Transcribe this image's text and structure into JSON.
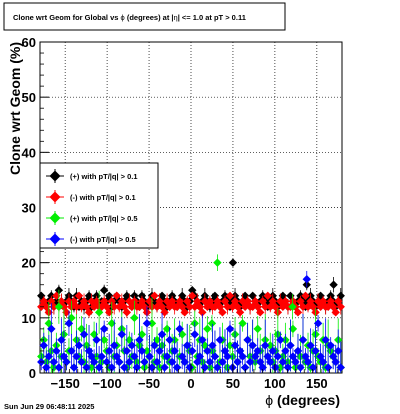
{
  "chart_data": {
    "type": "scatter",
    "title_parts": {
      "pre": "Clone wrt Geom for Global vs ",
      "phi": "ϕ",
      "mid": " (degrees) at |",
      "eta": "η",
      "post": "| <= 1.0 at pT > 0.11"
    },
    "xlabel": {
      "symbol": "ϕ",
      "text": " (degrees)"
    },
    "ylabel": "Clone wrt Geom (%)",
    "xlim": [
      -180,
      180
    ],
    "ylim": [
      0,
      60
    ],
    "x_ticks": [
      -150,
      -100,
      -50,
      0,
      50,
      100,
      150
    ],
    "x_tick_labels": [
      "−150",
      "−100",
      "−50",
      "0",
      "50",
      "100",
      "150"
    ],
    "y_ticks": [
      0,
      10,
      20,
      30,
      40,
      50,
      60
    ],
    "y_tick_labels": [
      "0",
      "10",
      "20",
      "30",
      "40",
      "50",
      "60"
    ],
    "grid": true,
    "legend_position": "left",
    "footer": "Sun Jun 29 06:48:11 2025",
    "series": [
      {
        "name": "(+) with pT/|q| > 0.1",
        "color": "#000000",
        "marker": "diamond",
        "y": [
          14,
          13,
          12,
          13,
          14,
          12,
          13,
          15,
          13,
          12,
          13,
          14,
          13,
          12,
          14,
          12,
          13,
          12,
          13,
          14,
          12,
          13,
          14,
          12,
          13,
          15,
          13,
          14,
          12,
          13,
          14,
          13,
          12,
          13,
          14,
          13,
          12,
          14,
          13,
          12,
          14,
          13,
          12,
          13,
          14,
          13,
          12,
          13,
          14,
          13,
          12,
          13,
          14,
          13,
          12,
          13,
          14,
          13,
          12,
          13,
          15,
          14,
          13,
          12,
          13,
          14,
          13,
          12,
          13,
          14,
          13,
          12,
          13,
          14,
          13,
          12,
          13,
          14,
          13,
          12,
          13,
          14,
          13,
          12,
          14,
          13,
          12,
          13,
          14,
          13,
          12,
          13,
          14,
          13,
          12,
          13,
          14,
          13,
          12,
          14,
          13,
          12,
          13,
          14,
          13,
          12,
          13,
          14,
          13,
          12,
          13,
          14,
          13,
          12,
          13,
          14,
          13,
          12,
          13,
          14
        ],
        "extra": [
          {
            "x": 50,
            "y": 20
          },
          {
            "x": 138,
            "y": 16
          },
          {
            "x": 170,
            "y": 16
          }
        ]
      },
      {
        "name": "(-) with pT/|q| > 0.1",
        "color": "#ff0000",
        "marker": "diamond",
        "y": [
          12,
          13,
          12,
          11,
          13,
          12,
          14,
          12,
          13,
          12,
          11,
          13,
          12,
          13,
          12,
          14,
          12,
          13,
          12,
          11,
          13,
          12,
          13,
          12,
          12,
          13,
          12,
          11,
          13,
          12,
          14,
          12,
          13,
          12,
          11,
          13,
          12,
          13,
          12,
          12,
          13,
          12,
          11,
          13,
          12,
          14,
          12,
          13,
          12,
          11,
          13,
          12,
          13,
          12,
          12,
          13,
          12,
          11,
          13,
          12,
          14,
          12,
          13,
          12,
          11,
          13,
          12,
          13,
          12,
          12,
          13,
          12,
          11,
          13,
          12,
          14,
          12,
          13,
          12,
          11,
          13,
          12,
          13,
          12,
          12,
          13,
          12,
          11,
          13,
          12,
          14,
          12,
          13,
          12,
          11,
          13,
          12,
          13,
          12,
          12,
          13,
          12,
          11,
          13,
          12,
          14,
          12,
          13,
          12,
          11,
          13,
          12,
          13,
          12,
          12,
          13,
          12,
          11,
          13,
          12
        ]
      },
      {
        "name": "(+) with pT/|q| > 0.5",
        "color": "#00ee00",
        "marker": "diamond",
        "y": [
          3,
          6,
          2,
          9,
          4,
          1,
          5,
          12,
          3,
          7,
          2,
          4,
          10,
          1,
          6,
          3,
          8,
          2,
          5,
          4,
          1,
          7,
          3,
          11,
          2,
          6,
          4,
          1,
          9,
          3,
          5,
          2,
          8,
          4,
          1,
          6,
          3,
          10,
          2,
          5,
          7,
          1,
          4,
          3,
          9,
          2,
          6,
          1,
          5,
          3,
          8,
          2,
          4,
          6,
          1,
          3,
          7,
          2,
          5,
          4,
          1,
          9,
          3,
          6,
          2,
          5,
          8,
          1,
          4,
          3,
          20,
          2,
          6,
          4,
          1,
          5,
          3,
          7,
          2,
          4,
          9,
          1,
          6,
          3,
          5,
          2,
          8,
          4,
          1,
          6,
          3,
          5,
          2,
          4,
          7,
          1,
          3,
          6,
          2,
          5,
          8,
          1,
          4,
          3,
          6,
          2,
          5,
          1,
          4,
          7,
          3,
          2,
          6,
          1,
          5,
          4,
          3,
          2,
          6,
          1
        ],
        "extra": [
          {
            "x": 25,
            "y": 9
          },
          {
            "x": 121,
            "y": 12
          }
        ]
      },
      {
        "name": "(-) with pT/|q| > 0.5",
        "color": "#0000ff",
        "marker": "diamond",
        "y": [
          2,
          5,
          1,
          3,
          8,
          2,
          4,
          1,
          6,
          3,
          2,
          9,
          4,
          1,
          3,
          5,
          2,
          7,
          1,
          4,
          3,
          2,
          6,
          1,
          3,
          8,
          2,
          4,
          1,
          5,
          3,
          2,
          7,
          1,
          4,
          2,
          5,
          3,
          1,
          6,
          4,
          2,
          9,
          3,
          1,
          5,
          2,
          4,
          7,
          1,
          3,
          6,
          2,
          4,
          1,
          8,
          3,
          2,
          5,
          1,
          4,
          7,
          2,
          3,
          6,
          1,
          4,
          2,
          5,
          3,
          1,
          6,
          2,
          4,
          3,
          8,
          1,
          5,
          2,
          4,
          3,
          1,
          6,
          2,
          5,
          3,
          4,
          2,
          1,
          5,
          3,
          2,
          4,
          1,
          3,
          6,
          2,
          4,
          1,
          5,
          3,
          2,
          4,
          1,
          6,
          3,
          2,
          5,
          1,
          4,
          9,
          3,
          2,
          6,
          1,
          5,
          3,
          2,
          4,
          1
        ],
        "extra": [
          {
            "x": 138,
            "y": 17
          }
        ]
      }
    ]
  }
}
